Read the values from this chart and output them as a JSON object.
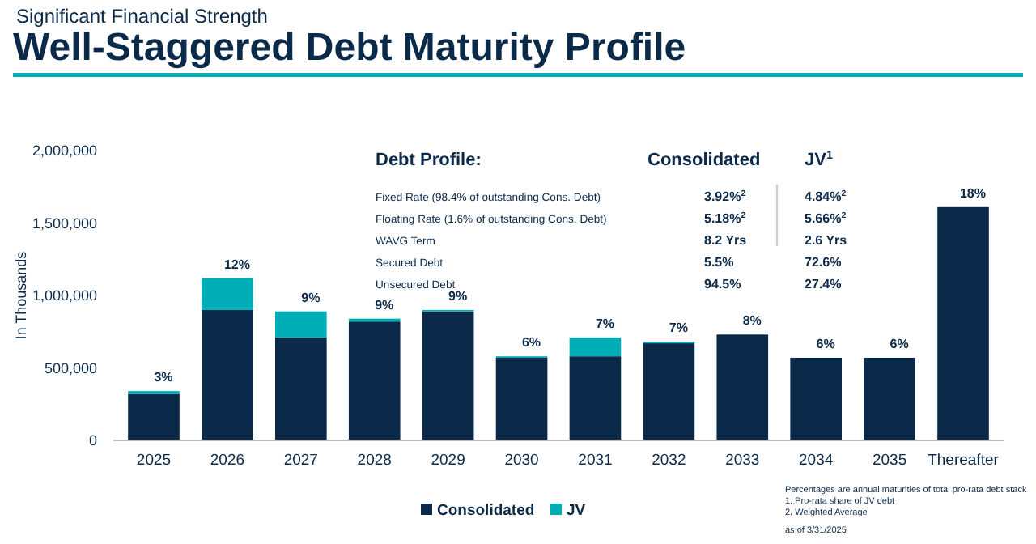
{
  "chart_data": {
    "type": "bar",
    "stacked": true,
    "subtitle": "Significant Financial Strength",
    "title": "Well-Staggered Debt Maturity Profile",
    "ylabel": "In Thousands",
    "categories": [
      "2025",
      "2026",
      "2027",
      "2028",
      "2029",
      "2030",
      "2031",
      "2032",
      "2033",
      "2034",
      "2035",
      "Thereafter"
    ],
    "series": [
      {
        "name": "Consolidated",
        "color": "#0b2a4a",
        "values": [
          320000,
          900000,
          710000,
          820000,
          890000,
          570000,
          580000,
          670000,
          730000,
          570000,
          570000,
          1610000
        ]
      },
      {
        "name": "JV",
        "color": "#00aeb8",
        "values": [
          20000,
          220000,
          180000,
          20000,
          10000,
          10000,
          130000,
          10000,
          0,
          0,
          0,
          0
        ]
      }
    ],
    "ylim": [
      0,
      2000000
    ],
    "yticks": [
      {
        "value": 0,
        "label": "0"
      },
      {
        "value": 500000,
        "label": "500,000"
      },
      {
        "value": 1000000,
        "label": "1,000,000"
      },
      {
        "value": 1500000,
        "label": "1,500,000"
      },
      {
        "value": 2000000,
        "label": "2,000,000"
      }
    ],
    "grid": false,
    "legend": "bottom",
    "annotations": [
      {
        "text": "3%",
        "x": "2025",
        "y": 340000
      },
      {
        "text": "12%",
        "x": "2026",
        "y": 1120000
      },
      {
        "text": "9%",
        "x": "2027",
        "y": 890000
      },
      {
        "text": "9%",
        "x": "2028",
        "y": 840000
      },
      {
        "text": "9%",
        "x": "2029",
        "y": 900000
      },
      {
        "text": "6%",
        "x": "2030",
        "y": 580000
      },
      {
        "text": "7%",
        "x": "2031",
        "y": 710000
      },
      {
        "text": "7%",
        "x": "2032",
        "y": 680000
      },
      {
        "text": "8%",
        "x": "2033",
        "y": 730000
      },
      {
        "text": "6%",
        "x": "2034",
        "y": 570000
      },
      {
        "text": "6%",
        "x": "2035",
        "y": 570000
      },
      {
        "text": "18%",
        "x": "Thereafter",
        "y": 1610000
      },
      "Debt Profile:",
      "Consolidated",
      "JV$^{1}$",
      "Fixed Rate (98.4% of outstanding Cons. Debt)",
      "3.92%$^{2}$",
      "4.84%$^{2}$",
      "Floating Rate (1.6% of outstanding Cons. Debt)",
      "5.18%$^{2}$",
      "5.66%$^{2}$",
      "WAVG Term",
      "8.2 Yrs",
      "2.6 Yrs",
      "Secured Debt",
      "5.5%",
      "72.6%",
      "Unsecured Debt",
      "94.5%",
      "27.4%",
      "Percentages are annual maturities of total pro-rata debt stack",
      "1. Pro-rata share of JV debt",
      "2. Weighted Average",
      "as of 3/31/2025"
    ]
  }
}
